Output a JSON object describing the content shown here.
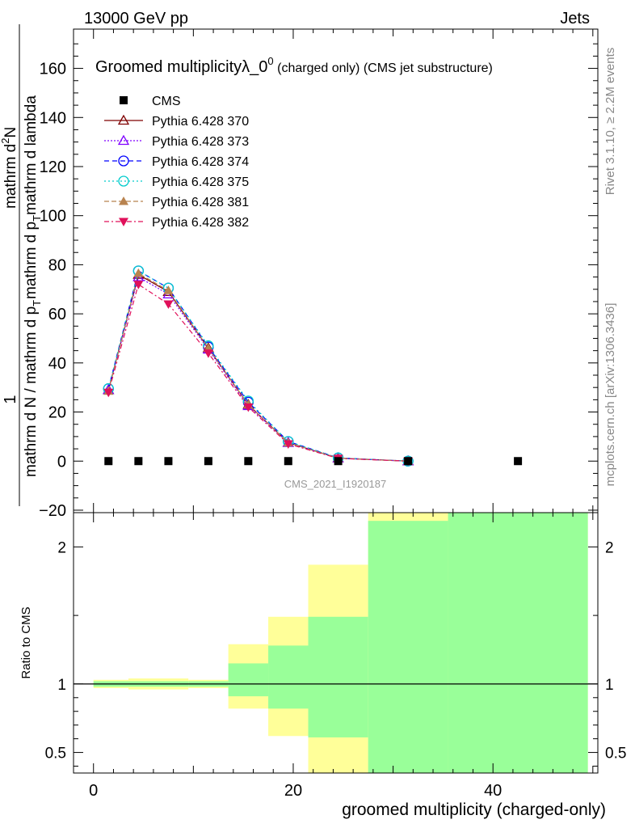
{
  "header": {
    "left": "13000 GeV pp",
    "right": "Jets"
  },
  "side": {
    "rivet": "Rivet 3.1.10, ≥ 2.2M events",
    "mcplots": "mcplots.cern.ch [arXiv:1306.3436]"
  },
  "colors": {
    "cms": "#000000",
    "p370": "#7f0000",
    "p373": "#7f00ff",
    "p374": "#0000ff",
    "p375": "#00cccc",
    "p381": "#b8834f",
    "p382": "#e0105a",
    "band_outer": "#ffff99",
    "band_inner": "#99ff99"
  },
  "chart_data": {
    "type": "line",
    "title_main": "Groomed multiplicityλ_0",
    "title_sup": "0",
    "title_small": "(charged only) (CMS jet substructure)",
    "watermark": "CMS_2021_I1920187",
    "ylabel_frac_num": "1",
    "ylabel_frac_den": "mathrm d N / mathrm d p",
    "ylabel_frac_den_sub": "T",
    "ylabel_num2": "mathrm d",
    "ylabel_num2_sup": "2",
    "ylabel_num2_rest": "N",
    "ylabel_den2": "mathrm d p",
    "ylabel_den2_sub": "T",
    "ylabel_den2_rest": "mathrm d lambda",
    "xlabel": "groomed multiplicity (charged-only)",
    "ratio_ylabel": "Ratio to CMS",
    "xlim": [
      -2,
      50.5
    ],
    "ylim": [
      -21,
      176
    ],
    "ratio_ylim": [
      0.35,
      2.25
    ],
    "x_ticks": [
      0,
      20,
      40
    ],
    "y_ticks": [
      -20,
      0,
      20,
      40,
      60,
      80,
      100,
      120,
      140,
      160
    ],
    "ratio_ticks": [
      0.5,
      1,
      2
    ],
    "legend_position": "top-left",
    "cms": {
      "name": "CMS",
      "x": [
        1.5,
        4.5,
        7.5,
        11.5,
        15.5,
        19.5,
        24.5,
        31.5,
        42.5
      ],
      "y": [
        0,
        0,
        0,
        0,
        0,
        0,
        0,
        0,
        0
      ]
    },
    "series": [
      {
        "name": "Pythia 6.428 370",
        "color_key": "p370",
        "marker": "triangle-open",
        "x": [
          1.5,
          4.5,
          7.5,
          11.5,
          15.5,
          19.5,
          24.5,
          31.5
        ],
        "y": [
          29,
          76,
          69,
          46,
          23,
          7.5,
          1.2,
          0
        ]
      },
      {
        "name": "Pythia 6.428 373",
        "color_key": "p373",
        "marker": "triangle-open",
        "x": [
          1.5,
          4.5,
          7.5,
          11.5,
          15.5,
          19.5,
          24.5,
          31.5
        ],
        "y": [
          29,
          75,
          68,
          45.5,
          22.5,
          7.5,
          1.2,
          0
        ]
      },
      {
        "name": "Pythia 6.428 374",
        "color_key": "p374",
        "marker": "circle-open",
        "x": [
          1.5,
          4.5,
          7.5,
          11.5,
          15.5,
          19.5,
          24.5,
          31.5
        ],
        "y": [
          29.5,
          77.5,
          70.5,
          46.5,
          24,
          8,
          1.3,
          0
        ]
      },
      {
        "name": "Pythia 6.428 375",
        "color_key": "p375",
        "marker": "circle-open",
        "x": [
          1.5,
          4.5,
          7.5,
          11.5,
          15.5,
          19.5,
          24.5,
          31.5
        ],
        "y": [
          29.5,
          77.5,
          70.5,
          47,
          24.5,
          8,
          1.3,
          0
        ]
      },
      {
        "name": "Pythia 6.428 381",
        "color_key": "p381",
        "marker": "triangle-filled",
        "x": [
          1.5,
          4.5,
          7.5,
          11.5,
          15.5,
          19.5,
          24.5,
          31.5
        ],
        "y": [
          28.5,
          76.5,
          69.5,
          46,
          23,
          7.5,
          1.2,
          0
        ]
      },
      {
        "name": "Pythia 6.428 382",
        "color_key": "p382",
        "marker": "triangle-down-filled",
        "x": [
          1.5,
          4.5,
          7.5,
          11.5,
          15.5,
          19.5,
          24.5,
          31.5
        ],
        "y": [
          28,
          72,
          64,
          44,
          22,
          7,
          1.1,
          0
        ]
      }
    ],
    "ratio_bands": [
      {
        "x0": 0,
        "x1": 3.5,
        "outer": [
          0.97,
          1.03
        ],
        "inner": [
          0.98,
          1.02
        ]
      },
      {
        "x0": 3.5,
        "x1": 9.5,
        "outer": [
          0.96,
          1.04
        ],
        "inner": [
          0.98,
          1.02
        ]
      },
      {
        "x0": 9.5,
        "x1": 13.5,
        "outer": [
          0.97,
          1.03
        ],
        "inner": [
          0.98,
          1.02
        ]
      },
      {
        "x0": 13.5,
        "x1": 17.5,
        "outer": [
          0.82,
          1.29
        ],
        "inner": [
          0.91,
          1.15
        ]
      },
      {
        "x0": 17.5,
        "x1": 21.5,
        "outer": [
          0.62,
          1.49
        ],
        "inner": [
          0.82,
          1.28
        ]
      },
      {
        "x0": 21.5,
        "x1": 27.5,
        "outer": [
          0.35,
          1.87
        ],
        "inner": [
          0.61,
          1.49
        ]
      },
      {
        "x0": 27.5,
        "x1": 35.5,
        "outer": [
          0.35,
          2.25
        ],
        "inner": [
          0.35,
          2.19
        ]
      },
      {
        "x0": 35.5,
        "x1": 49.5,
        "outer": [
          0.35,
          2.25
        ],
        "inner": [
          0.35,
          2.25
        ]
      }
    ]
  }
}
